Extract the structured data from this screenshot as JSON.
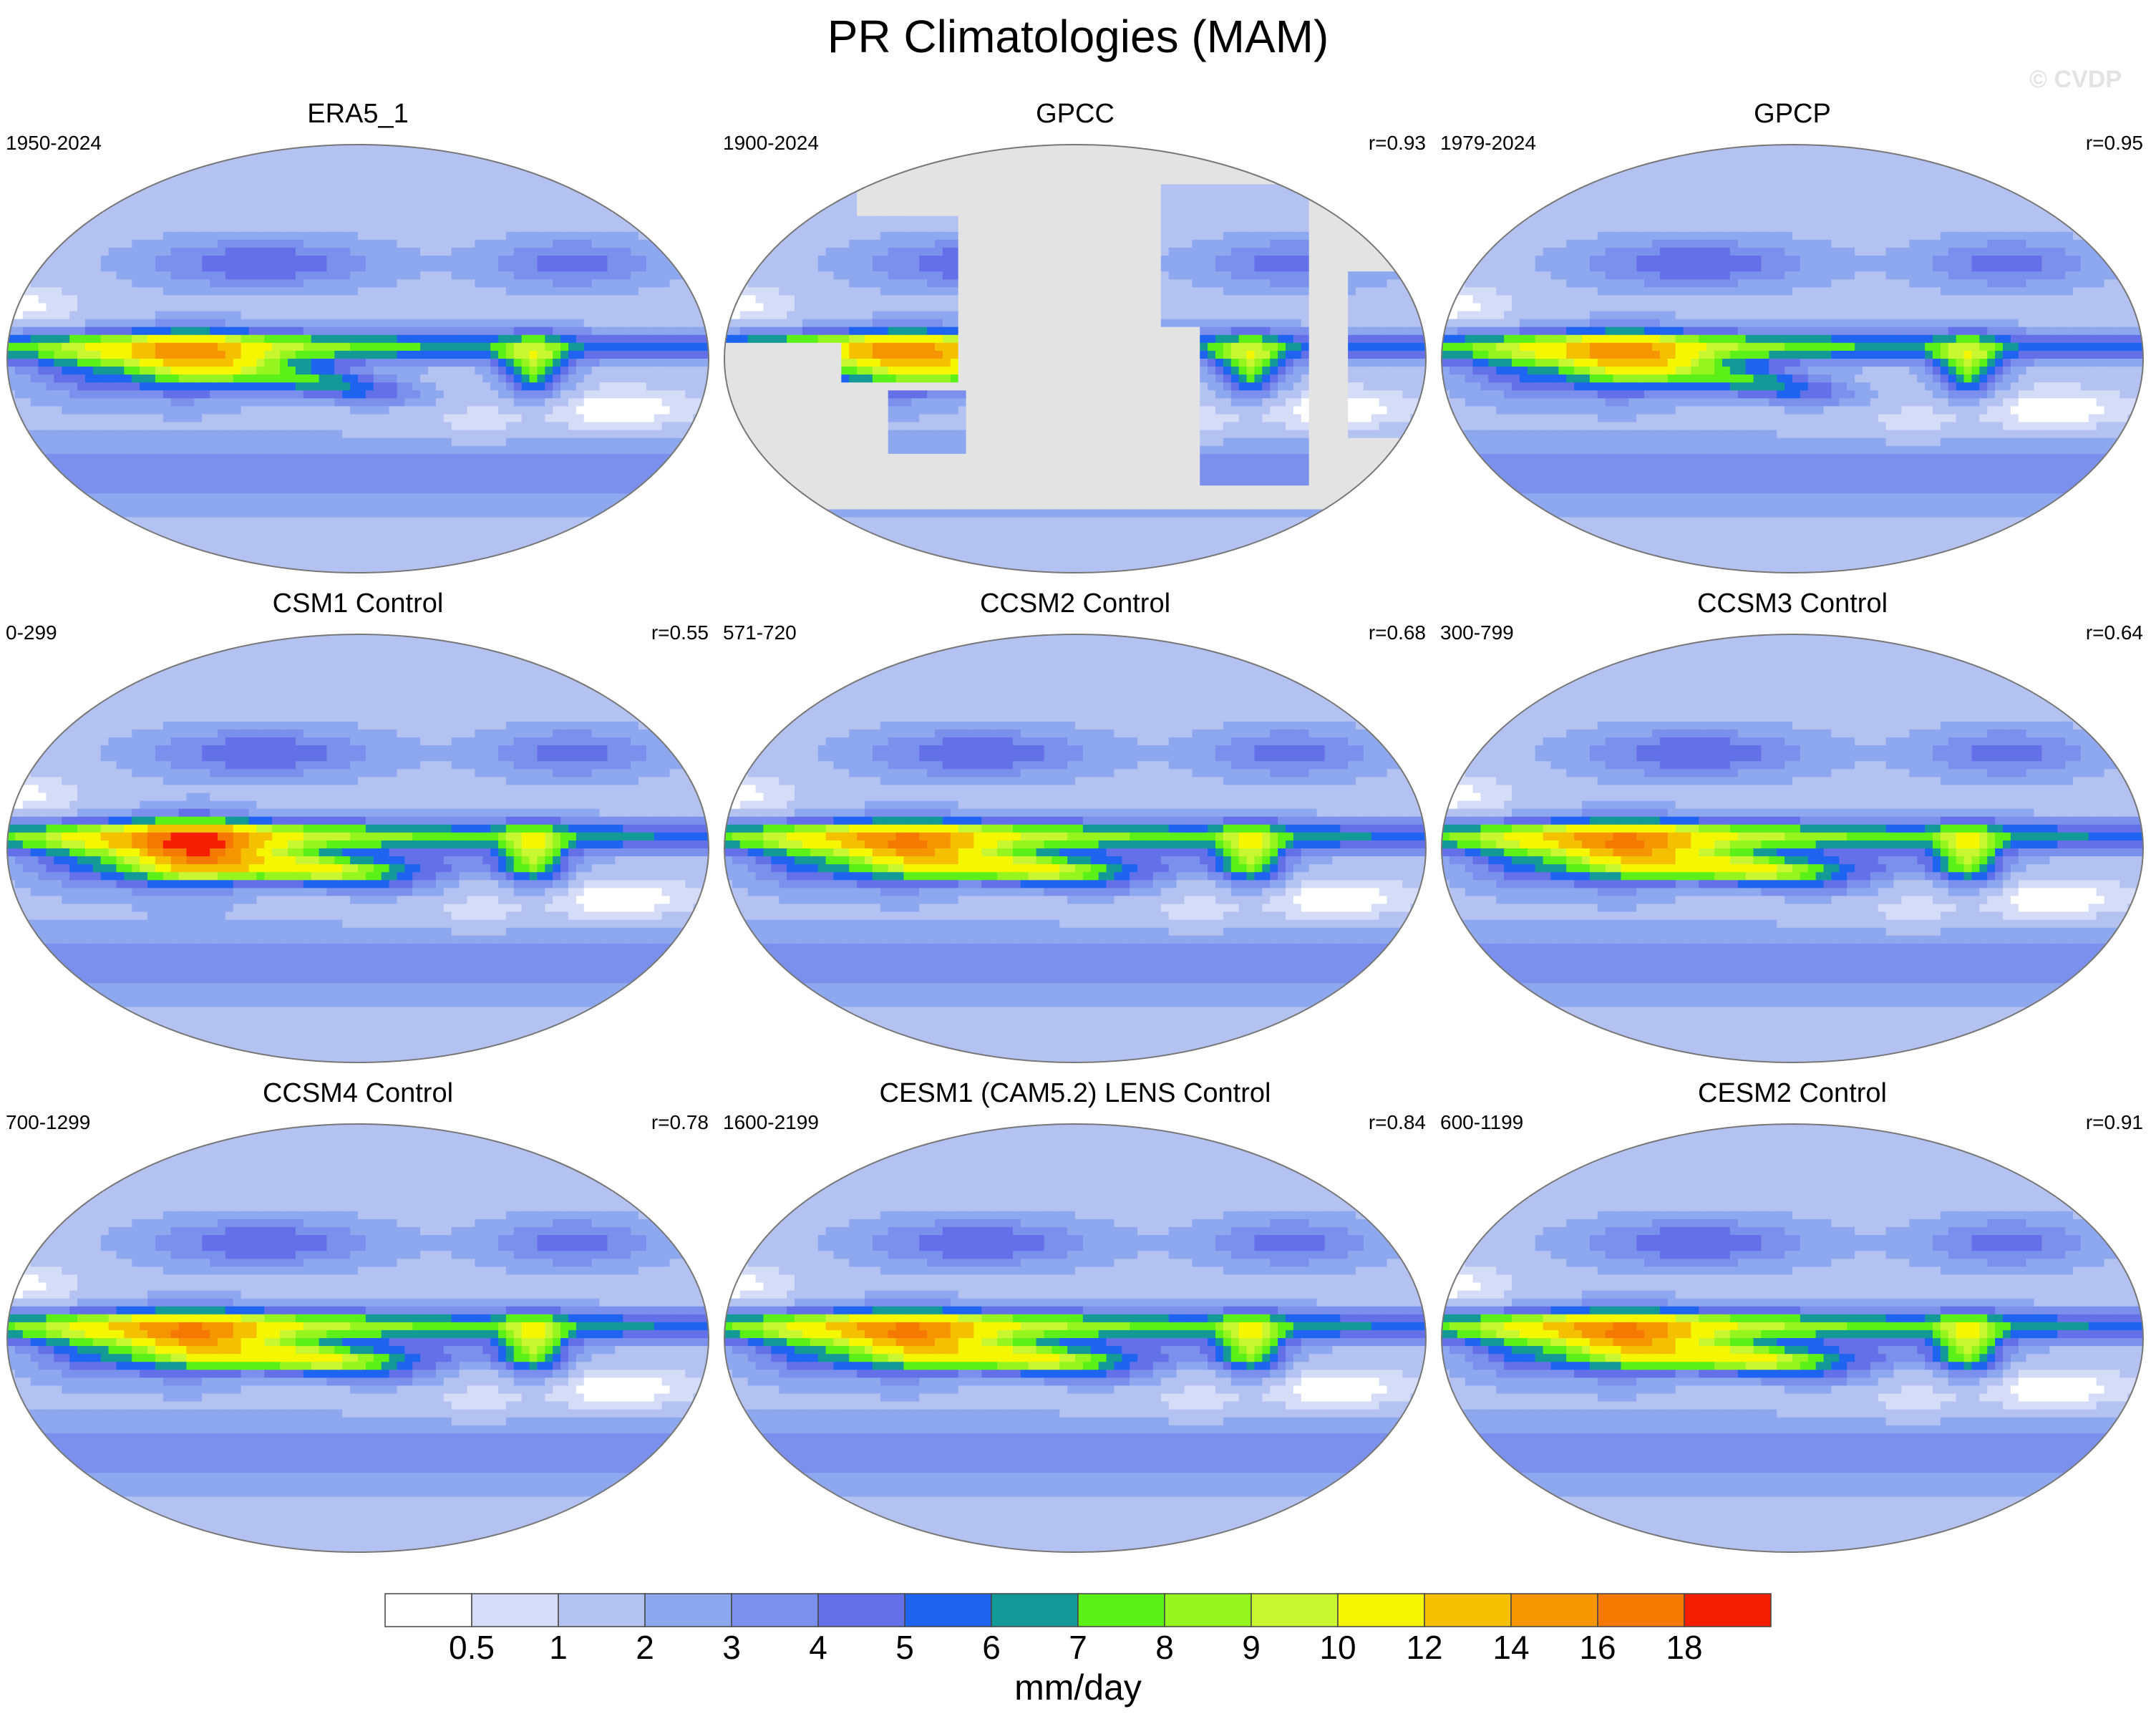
{
  "figure": {
    "title": "PR Climatologies (MAM)",
    "watermark": "© CVDP"
  },
  "chart_data": {
    "type": "contour-map-panels",
    "variable": "precipitation rate",
    "projection": "Robinson (Pacific-centered)",
    "panels": [
      {
        "title": "ERA5_1",
        "period": "1950-2024",
        "r": ""
      },
      {
        "title": "GPCC",
        "period": "1900-2024",
        "r": "r=0.93"
      },
      {
        "title": "GPCP",
        "period": "1979-2024",
        "r": "r=0.95"
      },
      {
        "title": "CSM1 Control",
        "period": "0-299",
        "r": "r=0.55"
      },
      {
        "title": "CCSM2 Control",
        "period": "571-720",
        "r": "r=0.68"
      },
      {
        "title": "CCSM3 Control",
        "period": "300-799",
        "r": "r=0.64"
      },
      {
        "title": "CCSM4 Control",
        "period": "700-1299",
        "r": "r=0.78"
      },
      {
        "title": "CESM1 (CAM5.2) LENS Control",
        "period": "1600-2199",
        "r": "r=0.84"
      },
      {
        "title": "CESM2 Control",
        "period": "600-1199",
        "r": "r=0.91"
      }
    ],
    "colorbar": {
      "label": "mm/day",
      "levels": [
        "0.5",
        "1",
        "2",
        "3",
        "4",
        "5",
        "6",
        "7",
        "8",
        "9",
        "10",
        "12",
        "14",
        "16",
        "18"
      ],
      "colors": [
        "#ffffff",
        "#d4dcf7",
        "#b4c2f2",
        "#8ea8f0",
        "#7b90ec",
        "#6470e8",
        "#1e64f0",
        "#139a96",
        "#5af018",
        "#96f51e",
        "#c8f732",
        "#f5f700",
        "#f5c000",
        "#f59600",
        "#f57800",
        "#f51e00"
      ]
    },
    "missing_color": "#e3e3e3"
  }
}
